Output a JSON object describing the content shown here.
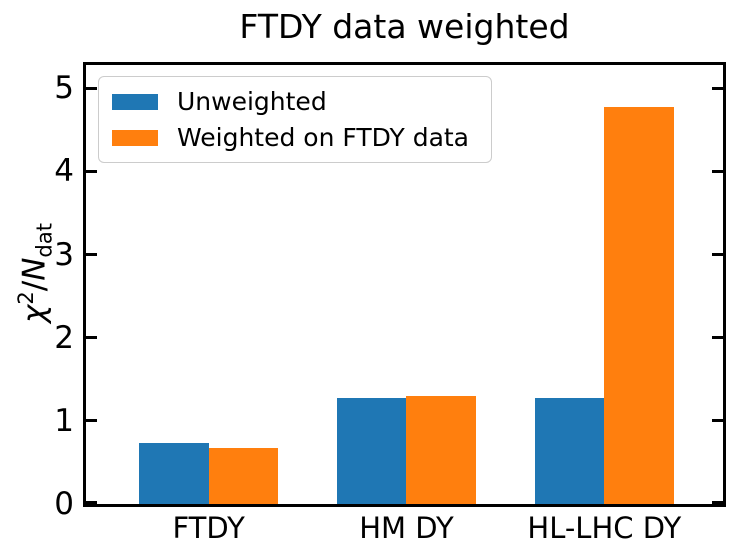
{
  "chart_data": {
    "type": "bar",
    "title": "FTDY data weighted",
    "ylabel": "χ²/N_dat",
    "ylabel_parts": {
      "numerator": "χ",
      "exponent": "2",
      "divider": "/",
      "denominator": "N",
      "denominator_sub": "dat"
    },
    "categories": [
      "FTDY",
      "HM DY",
      "HL-LHC DY"
    ],
    "series": [
      {
        "name": "Unweighted",
        "color": "#1f77b4",
        "values": [
          0.73,
          1.28,
          1.28
        ]
      },
      {
        "name": "Weighted on FTDY data",
        "color": "#ff7f0e",
        "values": [
          0.67,
          1.3,
          4.77
        ]
      }
    ],
    "yticks": [
      0,
      1,
      2,
      3,
      4,
      5
    ],
    "ylim": [
      0,
      5.28
    ],
    "xlabel": "",
    "grid": false,
    "legend_position": "upper left",
    "axis_color": "#000000",
    "background_color": "#ffffff"
  }
}
